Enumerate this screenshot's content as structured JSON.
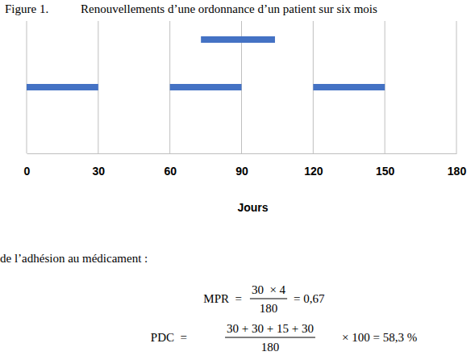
{
  "chart_data": {
    "type": "range_bar",
    "figure_label": "Figure 1.",
    "title": "Renouvellements d’une ordonnance d’un patient sur six mois",
    "xlabel": "Jours",
    "rows": [
      {
        "intervals": [
          [
            73,
            104
          ]
        ]
      },
      {
        "intervals": [
          [
            0,
            30
          ],
          [
            60,
            90
          ],
          [
            120,
            150
          ]
        ]
      }
    ],
    "color": "#4472c4",
    "xlim": [
      0,
      180
    ],
    "xticks": [
      0,
      30,
      60,
      90,
      120,
      150,
      180
    ],
    "grid": true,
    "tick_labels": "x"
  },
  "document": {
    "text": "de l’adhésion au médicament :",
    "formulas": [
      {
        "lhs": "MPR  =",
        "numerator": "30  × 4",
        "denominator": "180",
        "rhs": "= 0,67"
      },
      {
        "lhs": "PDC  =",
        "numerator": "30 + 30 + 15 + 30",
        "denominator": "180",
        "rhs": "× 100 = 58,3 %"
      }
    ]
  }
}
